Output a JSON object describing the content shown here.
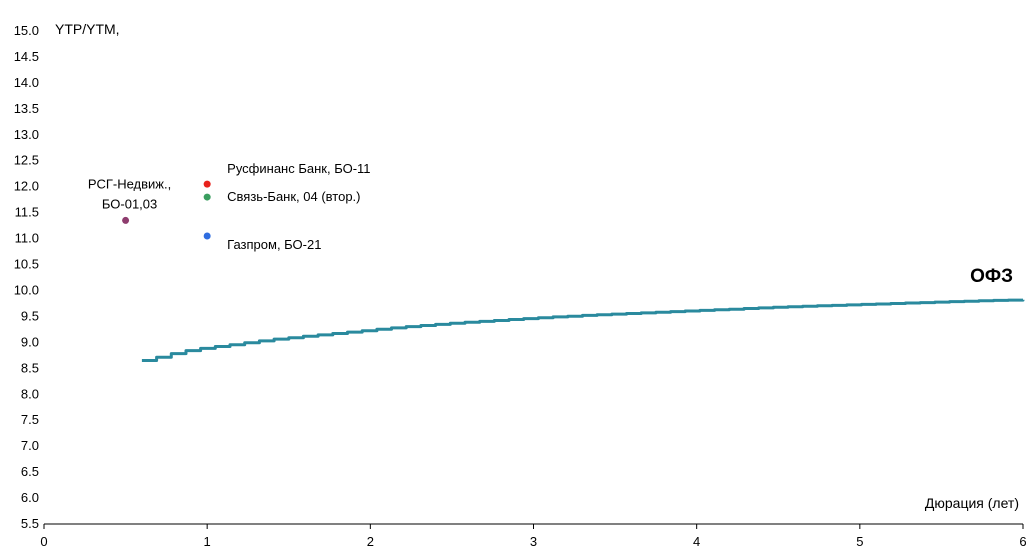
{
  "chart_data": {
    "type": "scatter",
    "ylabel": "YTP/YTM,",
    "xlabel": "Дюрация (лет)",
    "xlim": [
      0,
      6
    ],
    "ylim": [
      5.5,
      15.0
    ],
    "x_ticks": [
      "0",
      "1",
      "2",
      "3",
      "4",
      "5",
      "6"
    ],
    "y_ticks": [
      "5.5",
      "6.0",
      "6.5",
      "7.0",
      "7.5",
      "8.0",
      "8.5",
      "9.0",
      "9.5",
      "10.0",
      "10.5",
      "11.0",
      "11.5",
      "12.0",
      "12.5",
      "13.0",
      "13.5",
      "14.0",
      "14.5",
      "15.0"
    ],
    "grid": false,
    "points": [
      {
        "label": "РСГ-Недвиж., БО-01,03",
        "label_lines": [
          "РСГ-Недвиж.,",
          "БО-01,03"
        ],
        "x": 0.5,
        "y": 11.35,
        "color": "#8e3c6e"
      },
      {
        "label": "Русфинанс Банк, БО-11",
        "label_lines": [
          "Русфинанс Банк, БО-11"
        ],
        "x": 1.0,
        "y": 12.05,
        "color": "#e8221c"
      },
      {
        "label": "Связь-Банк, 04 (втор.)",
        "label_lines": [
          "Связь-Банк, 04 (втор.)"
        ],
        "x": 1.0,
        "y": 11.8,
        "color": "#3a9e5f"
      },
      {
        "label": "Газпром, БО-21",
        "label_lines": [
          "Газпром, БО-21"
        ],
        "x": 1.0,
        "y": 11.05,
        "color": "#2f6de0"
      }
    ],
    "curve": {
      "name": "ОФЗ",
      "color": "#2a8a9e",
      "x": [
        0.6,
        0.7,
        0.8,
        0.9,
        1.0,
        1.2,
        1.4,
        1.6,
        1.8,
        2.0,
        2.2,
        2.5,
        2.8,
        3.0,
        3.3,
        3.6,
        3.9,
        4.2,
        4.5,
        4.8,
        5.1,
        5.4,
        5.7,
        6.0
      ],
      "y": [
        8.65,
        8.72,
        8.8,
        8.86,
        8.9,
        8.98,
        9.06,
        9.12,
        9.18,
        9.24,
        9.3,
        9.37,
        9.43,
        9.47,
        9.52,
        9.56,
        9.6,
        9.64,
        9.68,
        9.71,
        9.74,
        9.77,
        9.8,
        9.82
      ]
    }
  }
}
